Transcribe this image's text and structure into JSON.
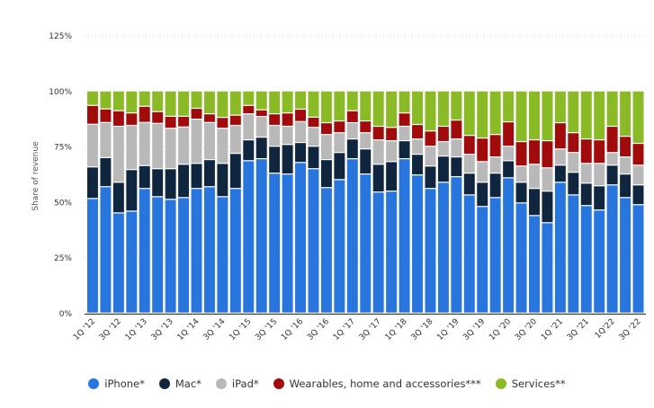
{
  "chart_data": {
    "type": "bar",
    "stacked": true,
    "ylabel": "Share of revenue",
    "ylim": [
      0,
      125
    ],
    "yticks": [
      "0%",
      "25%",
      "50%",
      "75%",
      "100%",
      "125%"
    ],
    "ytick_values": [
      0,
      25,
      50,
      75,
      100,
      125
    ],
    "grid": true,
    "legend_position": "bottom",
    "categories": [
      "1Q '12",
      "2Q '12",
      "3Q '12",
      "4Q '12",
      "1Q '13",
      "2Q '13",
      "3Q '13",
      "4Q '13",
      "1Q '14",
      "2Q '14",
      "3Q '14",
      "4Q '14",
      "1Q '15",
      "2Q '15",
      "3Q '15",
      "4Q '15",
      "1Q '16",
      "2Q '16",
      "3Q '16",
      "4Q '16",
      "1Q '17",
      "2Q '17",
      "3Q '17",
      "4Q '17",
      "1Q '18",
      "2Q '18",
      "3Q '18",
      "4Q '18",
      "1Q '19",
      "2Q '19",
      "3Q '19",
      "4Q '19",
      "1Q '20",
      "2Q '20",
      "3Q '20",
      "4Q '20",
      "1Q '21",
      "2Q '21",
      "3Q '21",
      "4Q '21",
      "1Q'22",
      "2Q '22",
      "3Q '22"
    ],
    "xtick_labels": [
      "1Q '12",
      "3Q '12",
      "1Q '13",
      "3Q '13",
      "1Q '14",
      "3Q '14",
      "1Q '15",
      "3Q '15",
      "1Q '16",
      "3Q '16",
      "1Q '17",
      "3Q '17",
      "1Q '18",
      "3Q '18",
      "1Q '19",
      "3Q '19",
      "1Q '20",
      "3Q '20",
      "1Q '21",
      "3Q '21",
      "1Q'22",
      "3Q '22"
    ],
    "series": [
      {
        "name": "iPhone*",
        "color": "#2876dd",
        "values": [
          51.6,
          56.9,
          45.1,
          45.9,
          56.1,
          52.4,
          51.2,
          52,
          56.1,
          56.9,
          52.4,
          56.1,
          68.6,
          69.5,
          63,
          62.6,
          67.8,
          65,
          56.5,
          60.1,
          69.5,
          62.6,
          54.5,
          54.9,
          69.5,
          62.2,
          56.1,
          58.9,
          61.4,
          53.2,
          48,
          52,
          60.9,
          49.6,
          43.9,
          40.7,
          58.9,
          53.2,
          48.4,
          46.4,
          57.7,
          52,
          48.8
        ]
      },
      {
        "name": "Mac*",
        "color": "#10263f",
        "values": [
          14.2,
          13.1,
          13.8,
          18.7,
          10.3,
          12.6,
          13.8,
          15,
          11.3,
          12.2,
          15,
          15.8,
          9.4,
          9.7,
          12.1,
          13.3,
          9,
          10.1,
          12.6,
          12.2,
          8.9,
          11.3,
          12.5,
          13.3,
          8.1,
          9.3,
          10.1,
          11.8,
          8.9,
          9.8,
          10.9,
          11,
          7.7,
          9.3,
          12.2,
          14.2,
          7.7,
          10.2,
          10.1,
          10.9,
          8.9,
          10.6,
          8.9
        ]
      },
      {
        "name": "iPad*",
        "color": "#b9b9b9",
        "values": [
          19.2,
          15.8,
          25.2,
          19.9,
          19.4,
          20.4,
          18.2,
          16.8,
          19.9,
          16.7,
          15.8,
          12.6,
          11.7,
          9.3,
          9.4,
          8.2,
          9.4,
          8.5,
          11.3,
          8.9,
          7.3,
          7.3,
          11,
          9.4,
          6.5,
          6.9,
          8.9,
          6.5,
          8.1,
          8.5,
          9.3,
          7.3,
          6.5,
          7.3,
          10.9,
          10.5,
          7.3,
          8.9,
          8.9,
          10.1,
          5.7,
          7.7,
          8.9
        ]
      },
      {
        "name": "Wearables, home and accessories***",
        "color": "#a10b0b",
        "values": [
          8.5,
          6.1,
          7,
          5.6,
          7.3,
          5.3,
          5.4,
          4.8,
          4.9,
          3.9,
          4.9,
          4.6,
          3.8,
          3,
          5.2,
          6,
          5.6,
          4.6,
          5.3,
          5.3,
          5.4,
          5.3,
          6.1,
          6,
          6,
          6.5,
          6.9,
          6.9,
          8.5,
          8.5,
          10.6,
          10.1,
          11,
          11,
          11,
          12.2,
          11.8,
          8.9,
          11,
          10.6,
          11.8,
          9.3,
          9.8
        ]
      },
      {
        "name": "Services**",
        "color": "#8aba25",
        "values": [
          6.5,
          8.1,
          8.9,
          9.9,
          6.9,
          9.3,
          11.4,
          11.4,
          7.8,
          10.3,
          11.9,
          10.9,
          6.5,
          8.5,
          10.3,
          9.9,
          8.2,
          11.8,
          14.3,
          13.5,
          8.9,
          13.5,
          15.9,
          16.4,
          9.9,
          15.1,
          18,
          15.9,
          13.1,
          20,
          21.2,
          19.6,
          13.9,
          22.8,
          22,
          22.4,
          14.3,
          18.8,
          21.6,
          22,
          15.9,
          20.4,
          23.6
        ]
      }
    ]
  }
}
